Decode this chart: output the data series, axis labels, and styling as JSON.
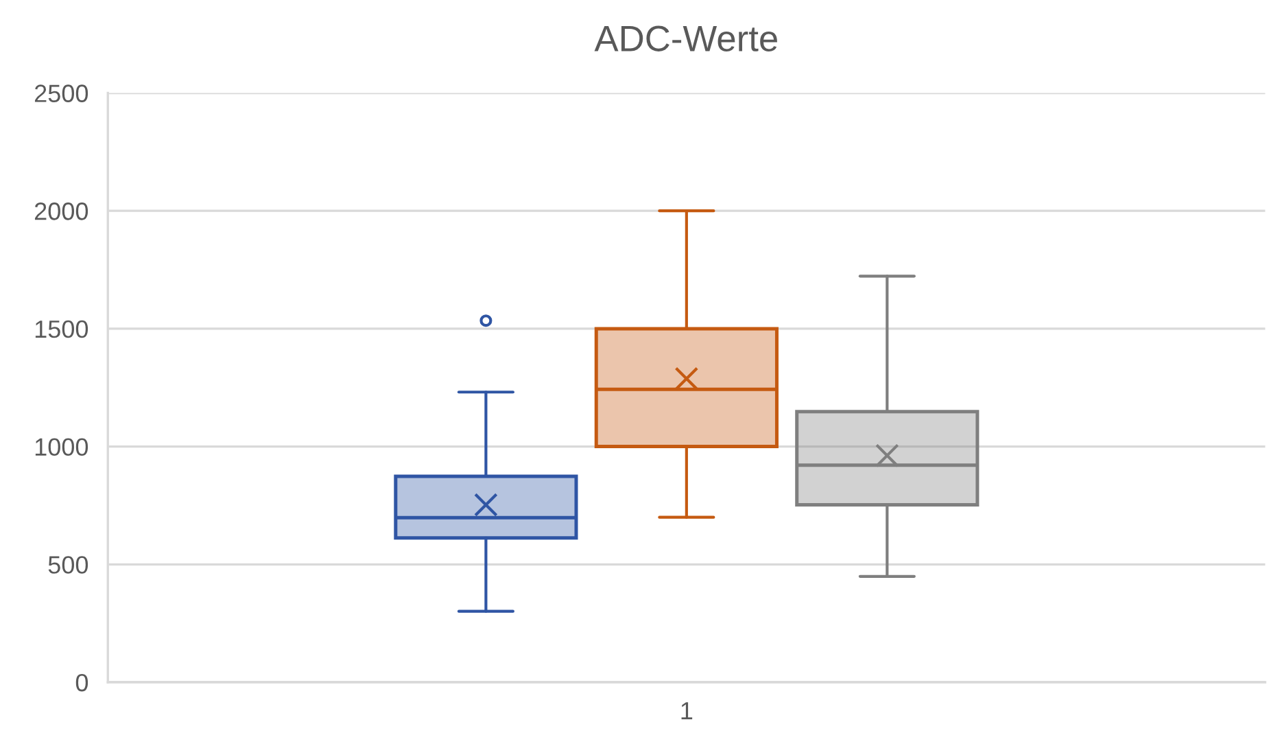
{
  "chart_data": {
    "type": "box",
    "title": "ADC-Werte",
    "categories": [
      "1"
    ],
    "series": [
      {
        "color": "#2f55a4",
        "boxes": [
          {
            "low": 301,
            "q1": 612,
            "median": 698,
            "q3": 874,
            "high": 1231,
            "mean": 753,
            "outliers": [
              1534
            ]
          }
        ]
      },
      {
        "color": "#c55a11",
        "boxes": [
          {
            "low": 700,
            "q1": 1000,
            "median": 1243,
            "q3": 1500,
            "high": 2000,
            "mean": 1288
          }
        ]
      },
      {
        "color": "#7f7f7f",
        "boxes": [
          {
            "low": 449,
            "q1": 753,
            "median": 921,
            "q3": 1148,
            "high": 1723,
            "mean": 962
          }
        ]
      }
    ],
    "ylim": [
      0,
      2500
    ],
    "yticks": [
      0,
      500,
      1000,
      1500,
      2000,
      2500
    ],
    "grid": "y"
  }
}
